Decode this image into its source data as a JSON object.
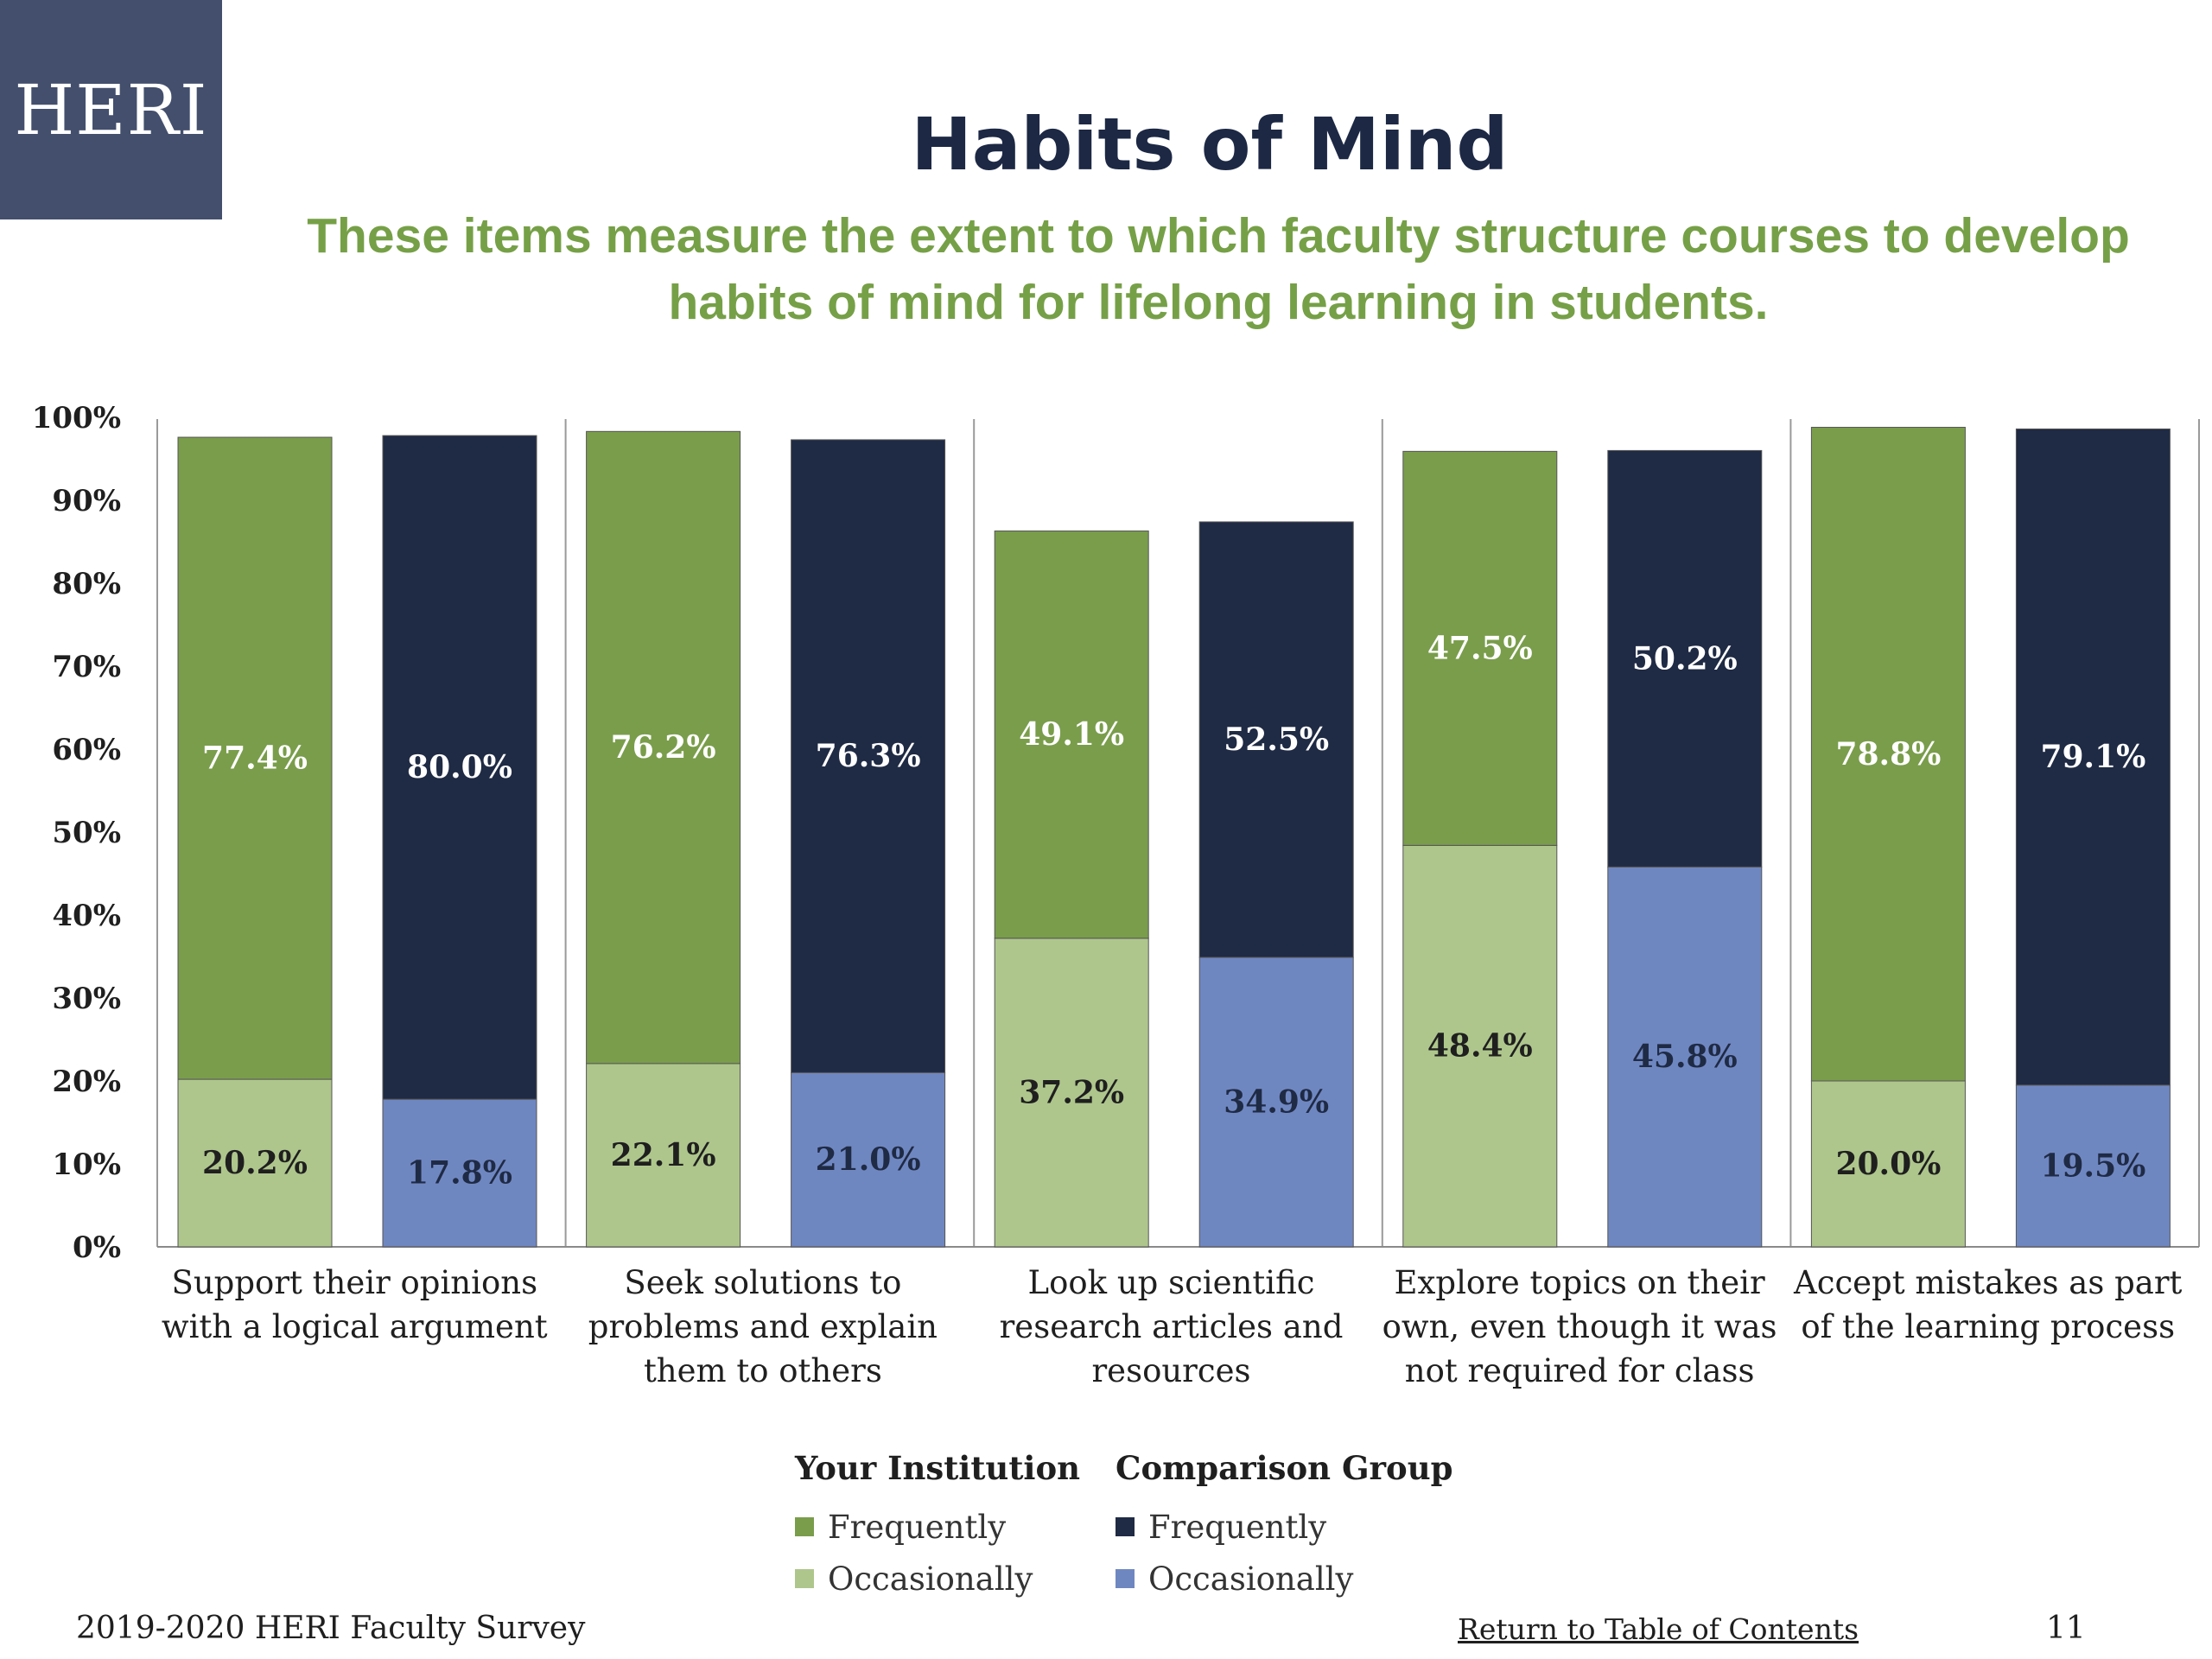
{
  "logo": {
    "text": "HERI"
  },
  "header": {
    "title": "Habits of Mind",
    "subtitle_line1": "These items measure the extent to which faculty structure courses to develop",
    "subtitle_line2": "habits of mind for lifelong learning in students."
  },
  "colors": {
    "inst_frequently": "#7a9d4b",
    "inst_occasionally": "#aec68c",
    "comp_frequently": "#1f2a44",
    "comp_occasionally": "#6f87c1",
    "title": "#1c2844",
    "subtitle": "#76a047"
  },
  "chart_data": {
    "type": "bar",
    "stacked": true,
    "title": "",
    "xlabel": "",
    "ylabel": "",
    "ylim": [
      0,
      100
    ],
    "yticks": [
      "0%",
      "10%",
      "20%",
      "30%",
      "40%",
      "50%",
      "60%",
      "70%",
      "80%",
      "90%",
      "100%"
    ],
    "categories": [
      [
        "Support their opinions",
        "with a logical argument"
      ],
      [
        "Seek solutions to",
        "problems and explain",
        "them to others"
      ],
      [
        "Look up scientific",
        "research articles and",
        "resources"
      ],
      [
        "Explore topics on their",
        "own, even though it was",
        "not required for class"
      ],
      [
        "Accept mistakes as part",
        "of  the learning process"
      ]
    ],
    "groups": [
      "Your Institution",
      "Comparison Group"
    ],
    "series": [
      {
        "name": "Occasionally",
        "group": "Your Institution",
        "values": [
          20.2,
          22.1,
          37.2,
          48.4,
          20.0
        ],
        "labels": [
          "20.2%",
          "22.1%",
          "37.2%",
          "48.4%",
          "20.0%"
        ]
      },
      {
        "name": "Frequently",
        "group": "Your Institution",
        "values": [
          77.4,
          76.2,
          49.1,
          47.5,
          78.8
        ],
        "labels": [
          "77.4%",
          "76.2%",
          "49.1%",
          "47.5%",
          "78.8%"
        ]
      },
      {
        "name": "Occasionally",
        "group": "Comparison Group",
        "values": [
          17.8,
          21.0,
          34.9,
          45.8,
          19.5
        ],
        "labels": [
          "17.8%",
          "21.0%",
          "34.9%",
          "45.8%",
          "19.5%"
        ]
      },
      {
        "name": "Frequently",
        "group": "Comparison Group",
        "values": [
          80.0,
          76.3,
          52.5,
          50.2,
          79.1
        ],
        "labels": [
          "80.0%",
          "76.3%",
          "52.5%",
          "50.2%",
          "79.1%"
        ]
      }
    ],
    "grid": false,
    "legend_position": "bottom"
  },
  "legend": {
    "institution_title": "Your Institution",
    "comparison_title": "Comparison Group",
    "frequently": "Frequently",
    "occasionally": "Occasionally"
  },
  "footer": {
    "survey": "2019-2020 HERI Faculty Survey",
    "toc_link": "Return to Table of Contents",
    "page_number": "11"
  }
}
